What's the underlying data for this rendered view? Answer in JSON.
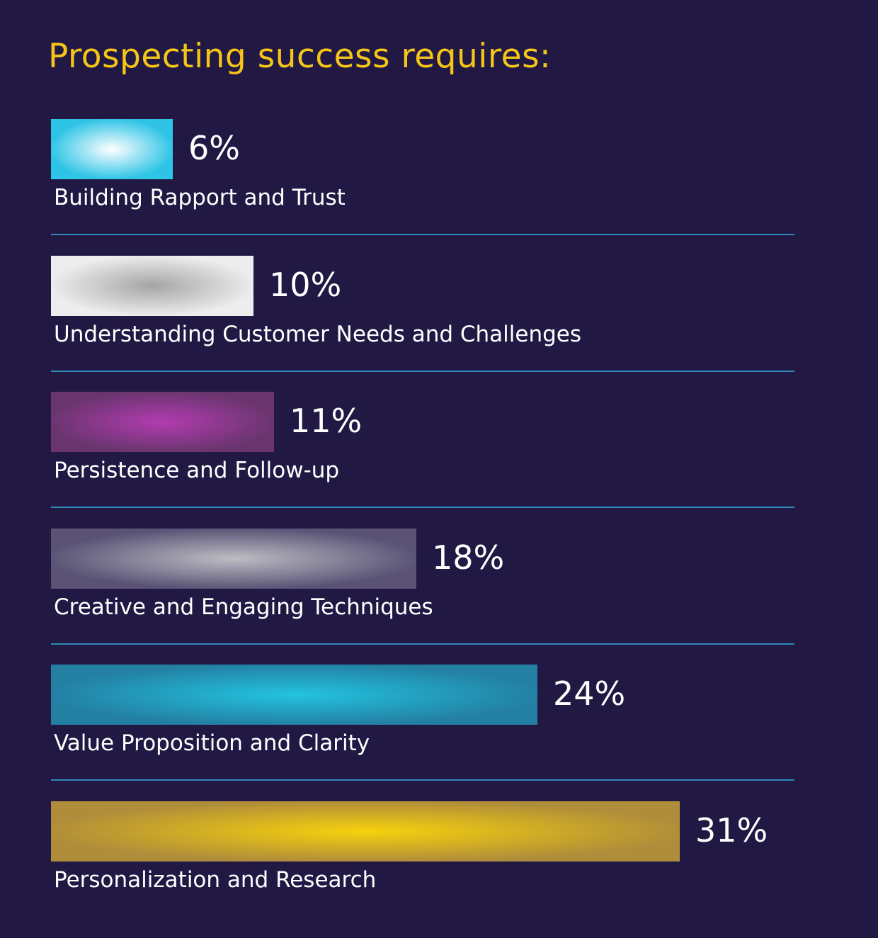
{
  "chart_data": {
    "type": "bar",
    "orientation": "horizontal",
    "title": "Prospecting success requires:",
    "categories": [
      "Building Rapport and Trust",
      "Understanding Customer Needs and Challenges",
      "Persistence and Follow-up",
      "Creative and Engaging Techniques",
      "Value Proposition and Clarity",
      "Personalization and Research"
    ],
    "values": [
      6,
      10,
      11,
      18,
      24,
      31
    ],
    "value_labels": [
      "6%",
      "10%",
      "11%",
      "18%",
      "24%",
      "31%"
    ],
    "unit": "%",
    "grid": false,
    "legend": "none"
  },
  "colors": {
    "background": "#211944",
    "title": "#f5c518",
    "text": "#ffffff",
    "divider": "#2f88b8",
    "bars": [
      {
        "center": "#ffffff",
        "edge": "#2ec4e6"
      },
      {
        "center": "#a5a5a5",
        "edge": "#ededed"
      },
      {
        "center": "#b23cb0",
        "edge": "#6a356f"
      },
      {
        "center": "#bdbdc3",
        "edge": "#5a5376"
      },
      {
        "center": "#23c3e0",
        "edge": "#2380a3"
      },
      {
        "center": "#f6d10d",
        "edge": "#b08d3a"
      }
    ]
  }
}
